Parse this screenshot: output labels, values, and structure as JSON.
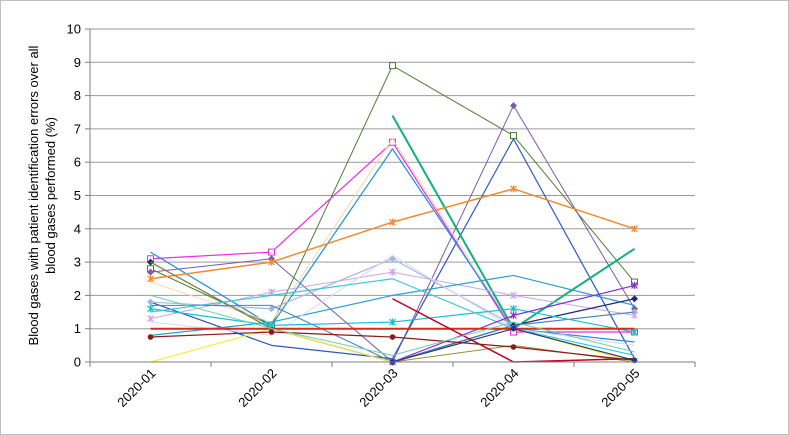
{
  "chart_data": {
    "type": "line",
    "categories": [
      "2020-01",
      "2020-02",
      "2020-03",
      "2020-04",
      "2020-05"
    ],
    "ylabel_lines": [
      "Blood gases with patient identification errors over all",
      "blood gases performed (%)"
    ],
    "ylim": [
      0,
      10
    ],
    "yticks": [
      "0",
      "1",
      "2",
      "3",
      "4",
      "5",
      "6",
      "7",
      "8",
      "9",
      "10"
    ],
    "grid": "horizontal",
    "series": [
      {
        "color": "#4E7F31",
        "marker": "square",
        "width": 1,
        "values": [
          2.8,
          1.1,
          8.9,
          6.8,
          2.4
        ]
      },
      {
        "color": "#7B5CA6",
        "marker": "diamond",
        "width": 1,
        "values": [
          2.7,
          3.1,
          0.0,
          7.7,
          1.6
        ]
      },
      {
        "color": "#2E56C8",
        "marker": "none",
        "width": 1.2,
        "values": [
          1.8,
          0.5,
          0.1,
          6.7,
          0.1
        ]
      },
      {
        "color": "#EE2BE0",
        "marker": "square",
        "width": 1.2,
        "values": [
          3.1,
          3.3,
          6.6,
          0.9,
          0.9
        ]
      },
      {
        "color": "#1E90E0",
        "marker": "none",
        "width": 1.2,
        "values": [
          3.3,
          1.1,
          6.4,
          1.0,
          0.6
        ]
      },
      {
        "color": "#F5D8B0",
        "marker": "none",
        "width": 1,
        "values": [
          2.4,
          1.2,
          6.7,
          1.0,
          0.5
        ]
      },
      {
        "color": "#12B07A",
        "marker": "none",
        "width": 2,
        "values": [
          null,
          null,
          7.4,
          1.0,
          3.4
        ]
      },
      {
        "color": "#F28A30",
        "marker": "star",
        "width": 1.5,
        "values": [
          2.5,
          3.0,
          4.2,
          5.2,
          4.0
        ]
      },
      {
        "color": "#9FB9DF",
        "marker": "diamond",
        "width": 1.2,
        "values": [
          1.8,
          1.6,
          3.1,
          1.1,
          1.5
        ]
      },
      {
        "color": "#C9A8E0",
        "marker": "star",
        "width": 1,
        "values": [
          1.3,
          2.1,
          2.7,
          2.0,
          1.4
        ]
      },
      {
        "color": "#2E9FD0",
        "marker": "none",
        "width": 1.2,
        "values": [
          0.8,
          1.2,
          2.0,
          2.6,
          1.7
        ]
      },
      {
        "color": "#1A2A80",
        "marker": "diamond",
        "width": 1.2,
        "values": [
          3.0,
          1.0,
          0.0,
          1.1,
          1.9
        ]
      },
      {
        "color": "#9D8D3A",
        "marker": "none",
        "width": 1,
        "values": [
          3.0,
          1.0,
          0.0,
          0.5,
          0.0
        ]
      },
      {
        "color": "#D8D8F0",
        "marker": "none",
        "width": 1,
        "values": [
          1.2,
          0.8,
          3.2,
          1.0,
          0.5
        ]
      },
      {
        "color": "#4A7FB8",
        "marker": "none",
        "width": 1,
        "values": [
          1.7,
          1.7,
          0.0,
          1.1,
          1.5
        ]
      },
      {
        "color": "#17BFD0",
        "marker": "star",
        "width": 1.2,
        "values": [
          1.6,
          1.1,
          1.2,
          1.6,
          0.9
        ]
      },
      {
        "color": "#35C8D8",
        "marker": "none",
        "width": 1.2,
        "values": [
          1.5,
          2.0,
          2.5,
          1.0,
          0.2
        ]
      },
      {
        "color": "#8A2BD0",
        "marker": "star",
        "width": 1.2,
        "values": [
          null,
          null,
          0.0,
          1.4,
          2.3
        ]
      },
      {
        "color": "#F5EE40",
        "marker": "none",
        "width": 1.2,
        "values": [
          0.0,
          1.0,
          0.0,
          1.0,
          0.0
        ]
      },
      {
        "color": "#E1261C",
        "marker": "none",
        "width": 2,
        "values": [
          1.0,
          1.0,
          1.0,
          1.0,
          1.0
        ]
      },
      {
        "color": "#C0002A",
        "marker": "none",
        "width": 1.5,
        "values": [
          null,
          null,
          1.9,
          0.0,
          0.1
        ]
      },
      {
        "color": "#8B1A1A",
        "marker": "circle",
        "width": 1.2,
        "values": [
          0.75,
          0.9,
          0.75,
          0.45,
          0.05
        ]
      },
      {
        "color": "#1F3A8A",
        "marker": "circle",
        "width": 1.2,
        "values": [
          null,
          null,
          0.0,
          1.0,
          0.05
        ]
      },
      {
        "color": "#6ED0B0",
        "marker": "none",
        "width": 1,
        "values": [
          2.0,
          1.0,
          0.2,
          1.2,
          0.3
        ]
      }
    ]
  }
}
